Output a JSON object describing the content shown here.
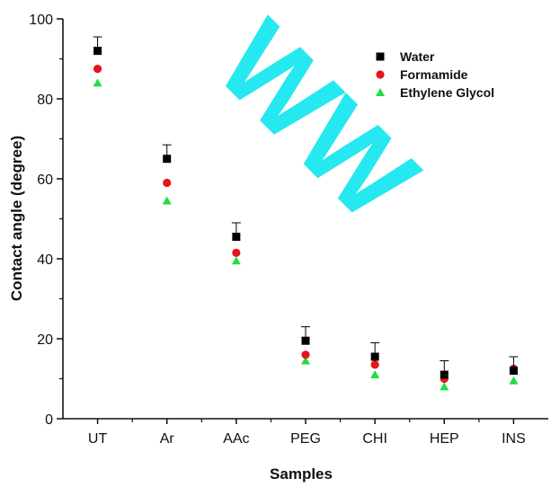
{
  "chart_data": {
    "type": "scatter",
    "title": "",
    "xlabel": "Samples",
    "ylabel": "Contact angle (degree)",
    "categories": [
      "UT",
      "Ar",
      "AAc",
      "PEG",
      "CHI",
      "HEP",
      "INS"
    ],
    "ylim": [
      0,
      100
    ],
    "yticks": [
      0,
      20,
      40,
      60,
      80,
      100
    ],
    "grid": false,
    "legend_position": "top-right",
    "series": [
      {
        "name": "Water",
        "color": "#000000",
        "marker": "square",
        "values": [
          92,
          65,
          45.5,
          19.5,
          15.5,
          11,
          12
        ],
        "errors": [
          3.5,
          3.5,
          3.5,
          3.5,
          3.5,
          3.5,
          3.5
        ]
      },
      {
        "name": "Formamide",
        "color": "#e8141c",
        "marker": "circle",
        "values": [
          87.5,
          59,
          41.5,
          16,
          13.5,
          10,
          12.5
        ],
        "errors": [
          0,
          0,
          0,
          0,
          0,
          0,
          0
        ]
      },
      {
        "name": "Ethylene Glycol",
        "color": "#22dd44",
        "marker": "triangle",
        "values": [
          84,
          54.5,
          39.5,
          14.5,
          11,
          8,
          9.5
        ],
        "errors": [
          0,
          0,
          0,
          0,
          0,
          0,
          0
        ]
      }
    ]
  }
}
